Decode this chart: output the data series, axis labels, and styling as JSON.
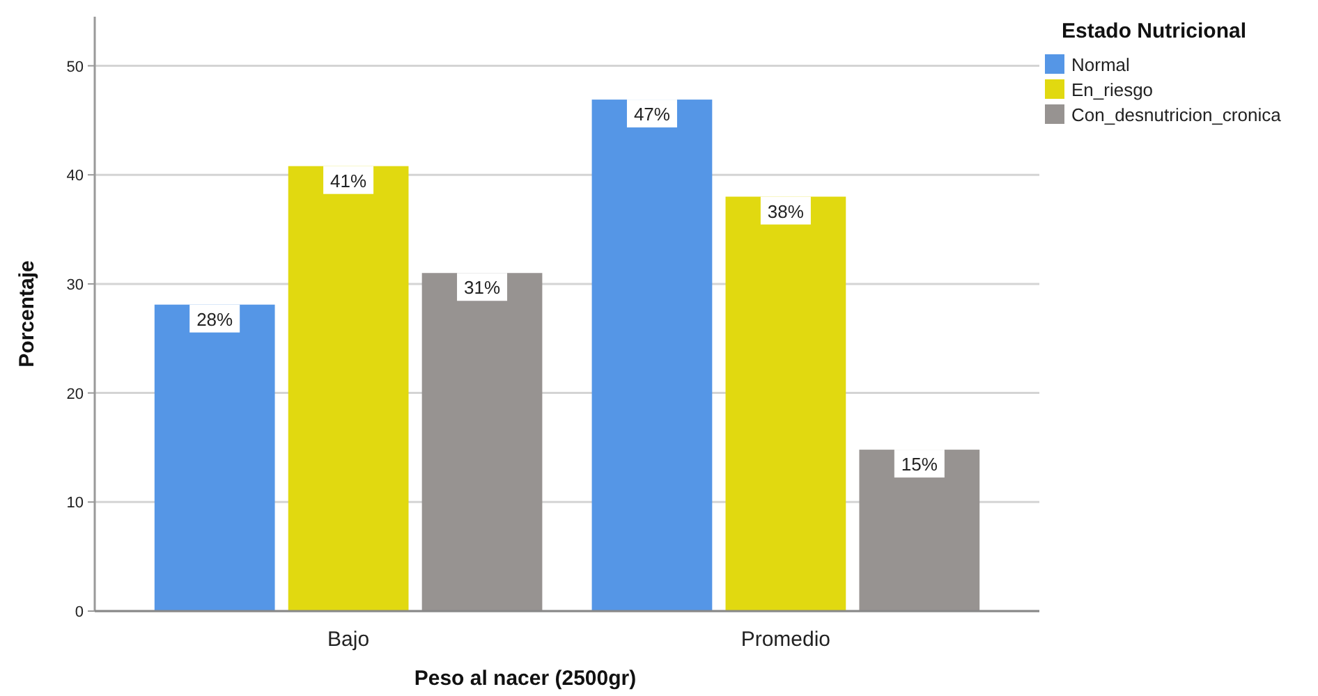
{
  "chart_data": {
    "type": "bar",
    "xlabel": "Peso al nacer (2500gr)",
    "ylabel": "Porcentaje",
    "legend_title": "Estado Nutricional",
    "categories": [
      "Bajo",
      "Promedio"
    ],
    "series": [
      {
        "name": "Normal",
        "color": "#5596e6",
        "values": [
          28.1,
          46.9
        ],
        "value_labels": [
          "28%",
          "47%"
        ]
      },
      {
        "name": "En_riesgo",
        "color": "#e1d910",
        "values": [
          40.8,
          38.0
        ],
        "value_labels": [
          "41%",
          "38%"
        ]
      },
      {
        "name": "Con_desnutricion_cronica",
        "color": "#979391",
        "values": [
          31.0,
          14.8
        ],
        "value_labels": [
          "31%",
          "15%"
        ]
      }
    ],
    "ylim": [
      0,
      54.5
    ],
    "yticks": [
      0,
      10,
      20,
      30,
      40,
      50
    ],
    "grid": "y",
    "legend": "top right"
  }
}
